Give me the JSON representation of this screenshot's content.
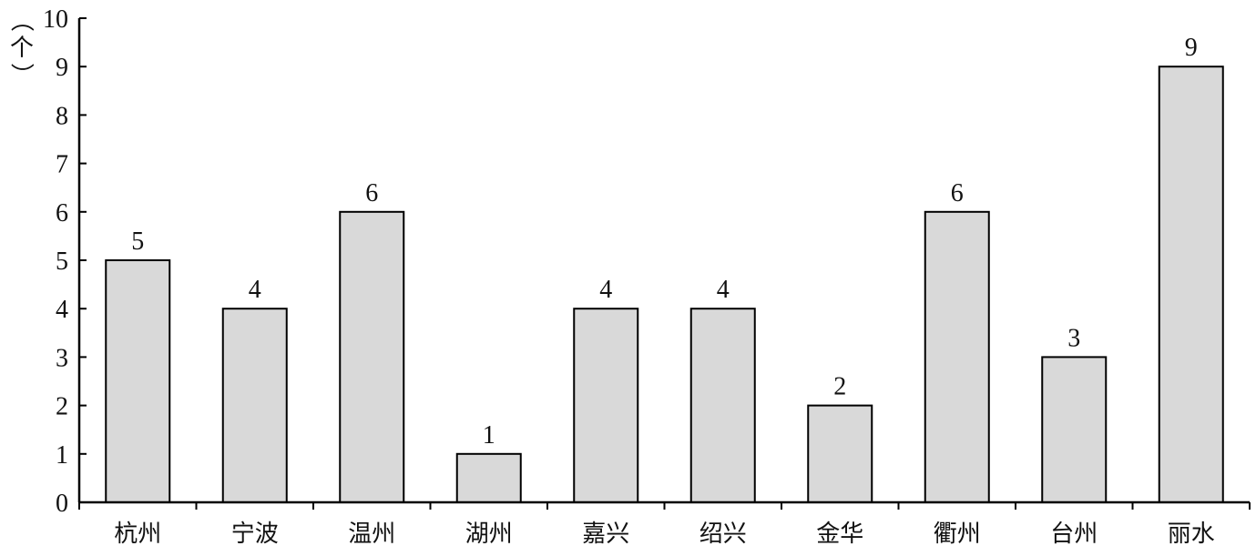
{
  "chart_data": {
    "type": "bar",
    "title": "",
    "xlabel": "",
    "ylabel": "（个）",
    "ylim": [
      0,
      10
    ],
    "yticks": [
      0,
      1,
      2,
      3,
      4,
      5,
      6,
      7,
      8,
      9,
      10
    ],
    "grid": false,
    "categories": [
      "杭州",
      "宁波",
      "温州",
      "湖州",
      "嘉兴",
      "绍兴",
      "金华",
      "衢州",
      "台州",
      "丽水"
    ],
    "values": [
      5,
      4,
      6,
      1,
      4,
      4,
      2,
      6,
      3,
      9
    ],
    "data_labels": [
      "5",
      "4",
      "6",
      "1",
      "4",
      "4",
      "2",
      "6",
      "3",
      "9"
    ],
    "bar_color": "#d9d9d9",
    "bar_edge_color": "#000000"
  }
}
